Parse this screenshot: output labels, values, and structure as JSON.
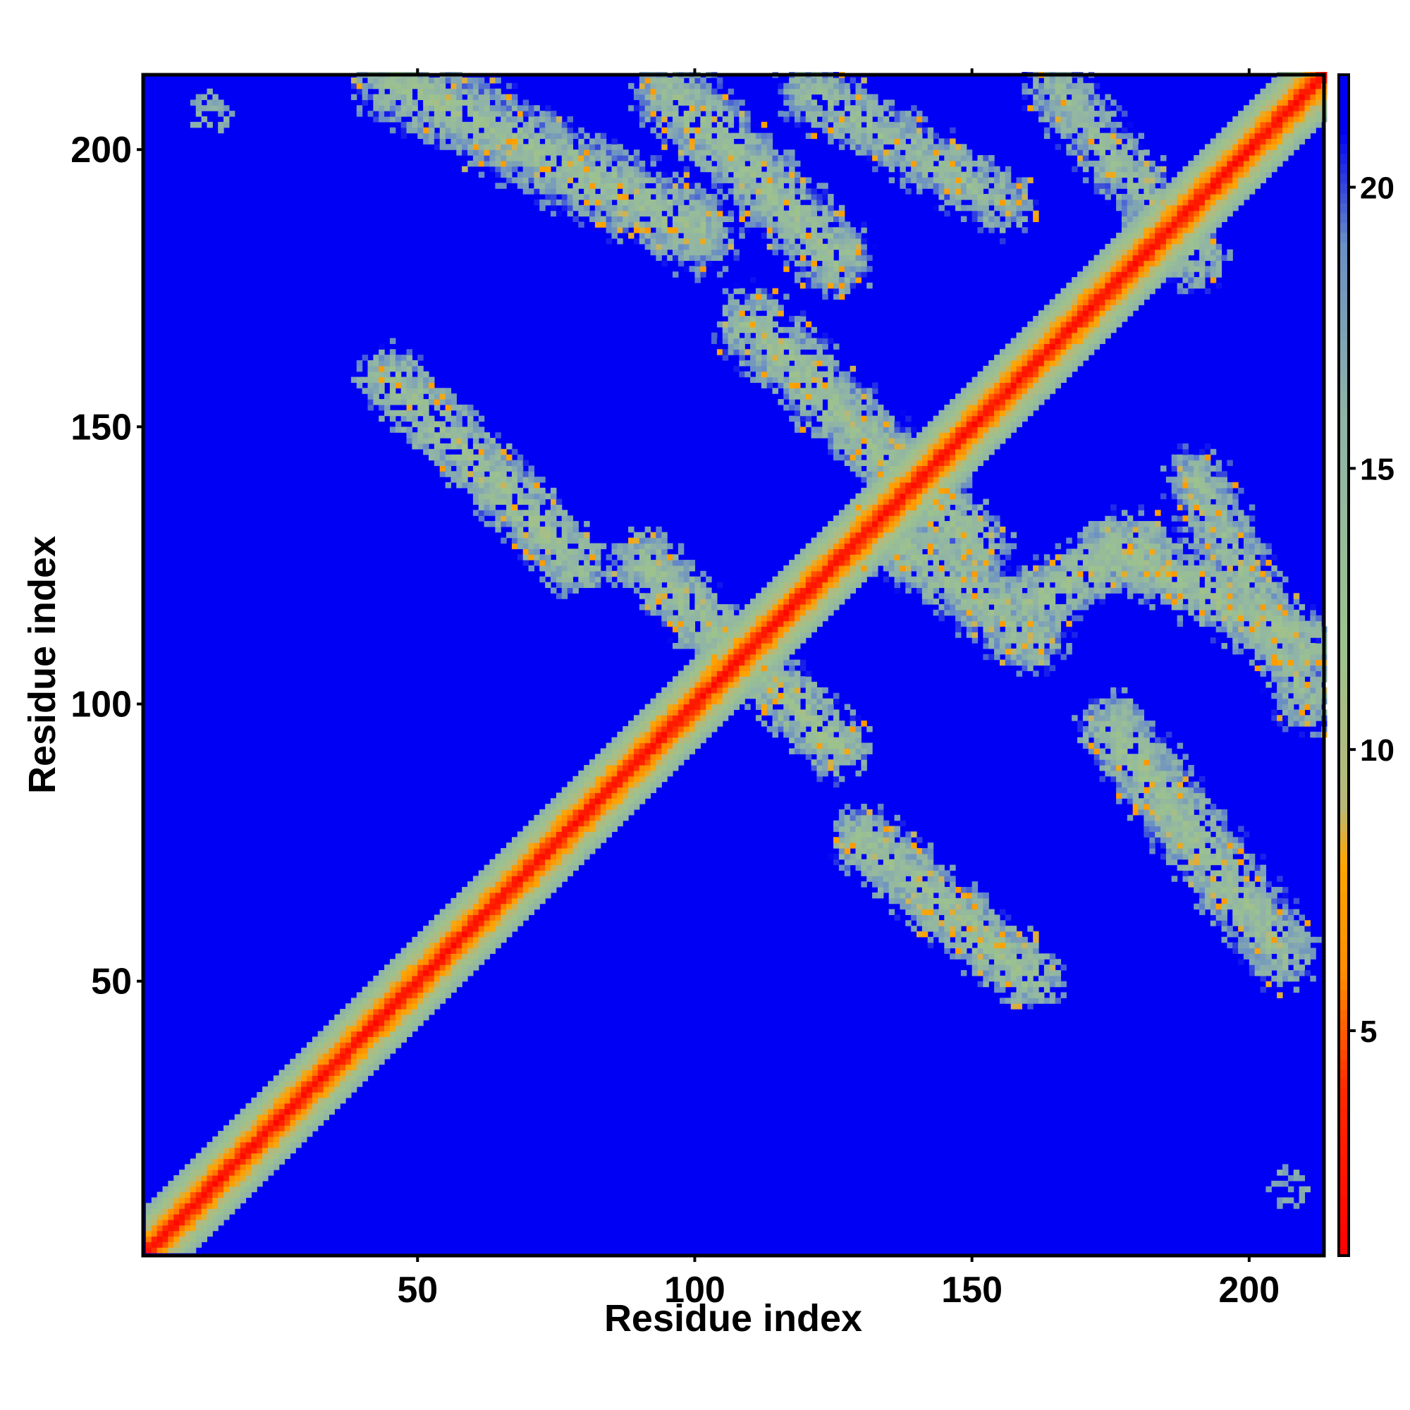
{
  "chart_data": {
    "type": "heatmap",
    "title": "",
    "xlabel": "Residue index",
    "ylabel": "Residue index",
    "xlim": [
      1,
      213
    ],
    "ylim": [
      1,
      213
    ],
    "x_ticks": [
      50,
      100,
      150,
      200
    ],
    "y_ticks": [
      50,
      100,
      150,
      200
    ],
    "colorbar": {
      "ticks": [
        5,
        10,
        15,
        20
      ],
      "range": [
        1,
        22
      ],
      "colors": [
        {
          "value": 1,
          "color": "#ff0000"
        },
        {
          "value": 4,
          "color": "#ff2a00"
        },
        {
          "value": 6,
          "color": "#ff8c00"
        },
        {
          "value": 8,
          "color": "#ffa500"
        },
        {
          "value": 9,
          "color": "#b8b878"
        },
        {
          "value": 12,
          "color": "#9cc28f"
        },
        {
          "value": 16,
          "color": "#8fb3a8"
        },
        {
          "value": 19,
          "color": "#6a8fc4"
        },
        {
          "value": 21,
          "color": "#0000f5"
        }
      ]
    },
    "saturation_color": "#0000f5",
    "description_of_bands": [
      {
        "kind": "diagonal",
        "from": [
          1,
          1
        ],
        "to": [
          213,
          213
        ],
        "core_value": 2,
        "halfwidth": 6
      },
      {
        "kind": "band",
        "from": [
          45,
          158
        ],
        "to": [
          78,
          125
        ],
        "value": 13,
        "halfwidth": 5
      },
      {
        "kind": "band",
        "from": [
          45,
          212
        ],
        "to": [
          100,
          185
        ],
        "value": 13,
        "halfwidth": 7
      },
      {
        "kind": "band",
        "from": [
          95,
          210
        ],
        "to": [
          125,
          180
        ],
        "value": 13,
        "halfwidth": 6
      },
      {
        "kind": "band",
        "from": [
          110,
          168
        ],
        "to": [
          150,
          128
        ],
        "value": 13,
        "halfwidth": 6
      },
      {
        "kind": "band",
        "from": [
          120,
          210
        ],
        "to": [
          155,
          190
        ],
        "value": 14,
        "halfwidth": 5
      },
      {
        "kind": "band",
        "from": [
          90,
          125
        ],
        "to": [
          125,
          92
        ],
        "value": 13,
        "halfwidth": 5
      },
      {
        "kind": "band",
        "from": [
          135,
          130
        ],
        "to": [
          160,
          112
        ],
        "value": 13,
        "halfwidth": 6
      },
      {
        "kind": "band",
        "from": [
          160,
          118
        ],
        "to": [
          180,
          128
        ],
        "value": 13,
        "halfwidth": 5
      },
      {
        "kind": "band",
        "from": [
          175,
          128
        ],
        "to": [
          210,
          110
        ],
        "value": 13,
        "halfwidth": 5
      },
      {
        "kind": "band",
        "from": [
          130,
          75
        ],
        "to": [
          160,
          50
        ],
        "value": 13,
        "halfwidth": 5
      },
      {
        "kind": "band",
        "from": [
          175,
          95
        ],
        "to": [
          205,
          55
        ],
        "value": 13,
        "halfwidth": 6
      },
      {
        "kind": "band",
        "from": [
          190,
          140
        ],
        "to": [
          210,
          100
        ],
        "value": 14,
        "halfwidth": 5
      },
      {
        "kind": "band",
        "from": [
          165,
          210
        ],
        "to": [
          190,
          180
        ],
        "value": 14,
        "halfwidth": 5
      },
      {
        "kind": "patch",
        "center": [
          12,
          206
        ],
        "value": 17,
        "radius": 4
      },
      {
        "kind": "patch",
        "center": [
          206,
          12
        ],
        "value": 17,
        "radius": 4
      }
    ]
  }
}
